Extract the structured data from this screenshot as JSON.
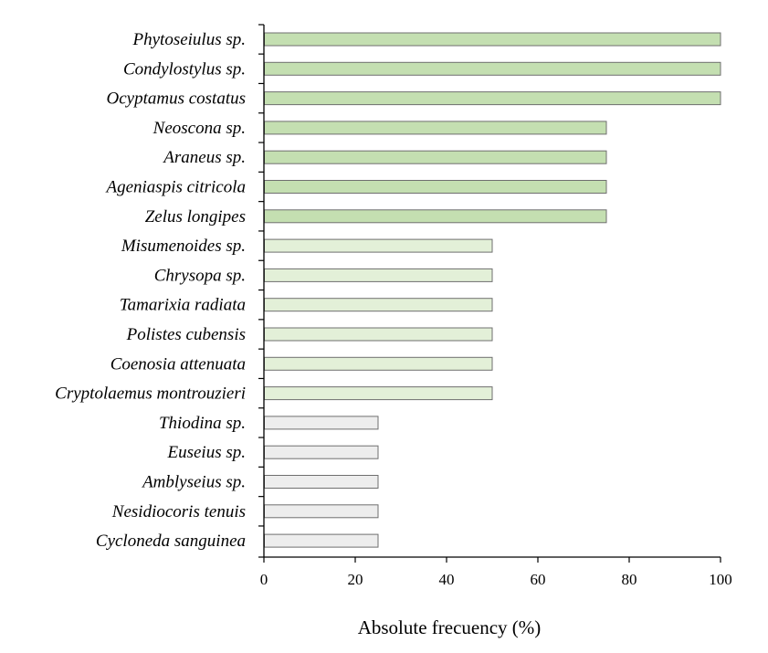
{
  "chart_data": {
    "type": "bar",
    "orientation": "horizontal",
    "title": "",
    "xlabel": "Absolute frecuency (%)",
    "ylabel": "",
    "xlim": [
      0,
      100
    ],
    "x_ticks": [
      0,
      20,
      40,
      60,
      80,
      100
    ],
    "grid": false,
    "legend": "none",
    "categories": [
      "Phytoseiulus sp.",
      "Condylostylus sp.",
      "Ocyptamus costatus",
      "Neoscona sp.",
      "Araneus sp.",
      "Ageniaspis citricola",
      "Zelus longipes",
      "Misumenoides sp.",
      "Chrysopa sp.",
      "Tamarixia radiata",
      "Polistes cubensis",
      "Coenosia attenuata",
      "Cryptolaemus montrouzieri",
      "Thiodina sp.",
      "Euseius sp.",
      "Amblyseius sp.",
      "Nesidiocoris tenuis",
      "Cycloneda sanguinea"
    ],
    "values": [
      100,
      100,
      100,
      75,
      75,
      75,
      75,
      50,
      50,
      50,
      50,
      50,
      50,
      25,
      25,
      25,
      25,
      25
    ],
    "bar_colors_by_value": {
      "100": "#c4dfb1",
      "75": "#c4dfb1",
      "50": "#e3f0d8",
      "25": "#ededed"
    },
    "bar_edge_color": "#6f6f6f"
  }
}
